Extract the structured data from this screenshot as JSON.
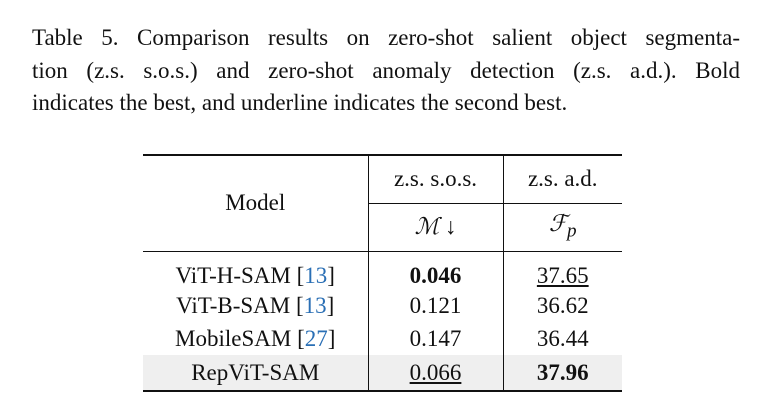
{
  "caption": {
    "lines": [
      "Table 5. Comparison results on zero-shot salient object segmenta-",
      "tion (z.s. s.o.s.) and zero-shot anomaly detection (z.s. a.d.). Bold",
      "indicates the best, and underline indicates the second best."
    ]
  },
  "table": {
    "header": {
      "model": "Model",
      "groups": [
        "z.s. s.o.s.",
        "z.s. a.d."
      ],
      "metrics": [
        {
          "symbol": "ℳ",
          "arrow": "↓"
        },
        {
          "symbol": "ℱ",
          "sub": "p"
        }
      ]
    },
    "rows": [
      {
        "model": "ViT-H-SAM",
        "cite": [
          "[",
          "13",
          "]"
        ],
        "cells": [
          {
            "text": "0.046",
            "emphasis": "bold"
          },
          {
            "text": "37.65",
            "emphasis": "underline"
          }
        ]
      },
      {
        "model": "ViT-B-SAM",
        "cite": [
          "[",
          "13",
          "]"
        ],
        "cells": [
          {
            "text": "0.121"
          },
          {
            "text": "36.62"
          }
        ]
      },
      {
        "model": "MobileSAM",
        "cite": [
          "[",
          "27",
          "]"
        ],
        "cells": [
          {
            "text": "0.147"
          },
          {
            "text": "36.44"
          }
        ]
      },
      {
        "model": "RepViT-SAM",
        "cells": [
          {
            "text": "0.066",
            "emphasis": "underline"
          },
          {
            "text": "37.96",
            "emphasis": "bold"
          }
        ],
        "highlight": "#efefef"
      }
    ],
    "cite_color": "#2a6fb5"
  }
}
